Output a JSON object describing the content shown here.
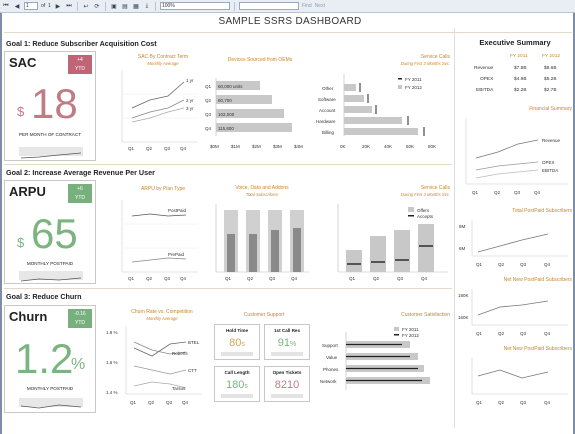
{
  "toolbar": {
    "page": "1",
    "of": "of",
    "total": "1",
    "zoom": "100%",
    "find": "Find",
    "next": "Next"
  },
  "dashboard": {
    "title": "SAMPLE SSRS DASHBOARD"
  },
  "goals": [
    {
      "title": "Goal 1: Reduce Subscriber Acquisition Cost"
    },
    {
      "title": "Goal 2: Increase Average Revenue Per User"
    },
    {
      "title": "Goal 3: Reduce Churn"
    }
  ],
  "kpis": {
    "sac": {
      "name": "SAC",
      "badge_value": "+4",
      "badge_unit": "YTD",
      "unit": "$",
      "value": "18",
      "caption": "PER MONTH OF CONTRACT",
      "color": "#c07c84"
    },
    "arpu": {
      "name": "ARPU",
      "badge_value": "+6",
      "badge_unit": "YTD",
      "unit": "$",
      "value": "65",
      "caption": "MONTHLY POSTPAID",
      "color": "#7bb47e"
    },
    "churn": {
      "name": "Churn",
      "badge_value": "-0.16",
      "badge_unit": "YTD",
      "unit": "%",
      "value": "1.2",
      "caption": "MONTHLY POSTPAID",
      "color": "#7bb47e"
    }
  },
  "charts": {
    "sac_term": {
      "title": "SAC By Contract Term",
      "subtitle": "Monthly Average",
      "series": [
        "1 yr",
        "2 yr",
        "3 yr"
      ],
      "x": [
        "Q1",
        "Q2",
        "Q3",
        "Q4"
      ]
    },
    "devices": {
      "title": "Devices Sourced from OEMs",
      "labels": [
        "Q1",
        "Q2",
        "Q3",
        "Q4"
      ],
      "values_text": [
        "60,000 units",
        "80,700",
        "102,000",
        "115,800"
      ],
      "xticks": [
        "$0M",
        "$1M",
        "$2M",
        "$3M",
        "$4M"
      ]
    },
    "svc_calls1": {
      "title": "Service Calls",
      "subtitle": "During First 3 Months Svc.",
      "categories": [
        "Other",
        "Software",
        "Account",
        "Hardware",
        "Billing"
      ],
      "legend": [
        "FY 2011",
        "FY 2012"
      ],
      "xticks": [
        "0K",
        "20K",
        "40K",
        "60K",
        "80K"
      ]
    },
    "arpu_plan": {
      "title": "ARPU by Plan Type",
      "series": [
        "PostPaid",
        "PrePaid"
      ],
      "x": [
        "Q1",
        "Q2",
        "Q3",
        "Q4"
      ]
    },
    "voice_data": {
      "title": "Voice, Data and Addons",
      "subtitle": "Total Subscribers",
      "x": [
        "Q1",
        "Q2",
        "Q3",
        "Q4"
      ]
    },
    "svc_calls2": {
      "title": "Service Calls",
      "subtitle": "During First 3 Months Svc.",
      "legend": [
        "Offers",
        "Accepts"
      ],
      "x": [
        "Q1",
        "Q2",
        "Q3",
        "Q4"
      ]
    },
    "churn_comp": {
      "title": "Churn Rate vs. Competition",
      "subtitle": "Monthly Average",
      "series": [
        "BTEL",
        "Roberts",
        "CTT",
        "Tarsus"
      ],
      "yticks": [
        "1.8 %",
        "1.6 %",
        "1.4 %"
      ],
      "x": [
        "Q1",
        "Q2",
        "Q3",
        "Q4"
      ]
    },
    "cust_support": {
      "title": "Customer Support",
      "tiles": [
        {
          "label": "Hold Time",
          "value": "80",
          "suffix": "s",
          "color": "#d3a35c"
        },
        {
          "label": "1st Call Res",
          "value": "91",
          "suffix": "%",
          "color": "#7bb47e"
        },
        {
          "label": "Call Length",
          "value": "180",
          "suffix": "s",
          "color": "#7bb47e"
        },
        {
          "label": "Open Tickets",
          "value": "8210",
          "suffix": "",
          "color": "#c07c84"
        }
      ]
    },
    "cust_sat": {
      "title": "Customer Satisfaction",
      "categories": [
        "Support",
        "Value",
        "Phones",
        "Network"
      ],
      "legend": [
        "FY 2011",
        "FY 2012"
      ]
    }
  },
  "executive": {
    "title": "Executive Summary",
    "years": [
      "FY 2011",
      "FY 2012"
    ],
    "rows": [
      {
        "label": "Revenue",
        "v2011": "$7.8B",
        "v2012": "$8.6B"
      },
      {
        "label": "OPEX",
        "v2011": "$4.9B",
        "v2012": "$5.2B"
      },
      {
        "label": "EBITDA",
        "v2011": "$2.2B",
        "v2012": "$2.7B"
      }
    ],
    "fin_title": "Financial Summary",
    "fin_series": [
      "Revenue",
      "OPEX",
      "EBITDA"
    ],
    "postpaid_title": "Total PostPaid Subscribers",
    "postpaid_yticks": [
      "8M",
      "6M"
    ],
    "netnew_title": "Net New PostPaid Subscribers",
    "netnew_yticks": [
      "180K",
      "160K"
    ],
    "netnew2_title": "Net New PostPaid Subscribers",
    "x": [
      "Q1",
      "Q2",
      "Q3",
      "Q4"
    ]
  }
}
